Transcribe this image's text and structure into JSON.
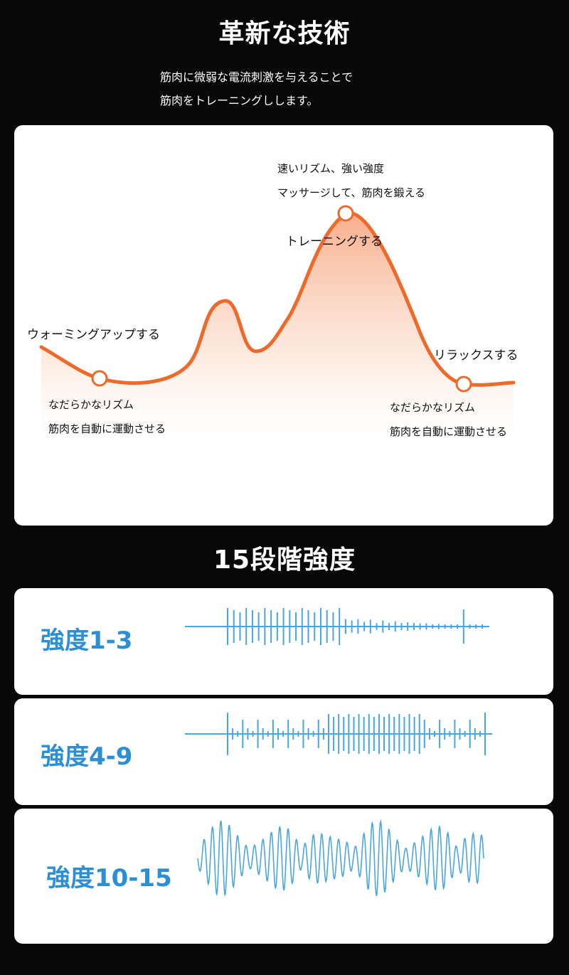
{
  "header": {
    "title": "革新な技術",
    "description_lines": [
      "筋肉に微弱な電流刺激を与えることで",
      "筋肉をトレーニングしします。"
    ]
  },
  "curve_panel": {
    "peak_label": "トレーニングする",
    "peak_desc_lines": [
      "速いリズム、強い強度",
      "マッサージして、筋肉を鍛える"
    ],
    "warmup_label": "ウォーミングアップする",
    "warmup_desc_lines": [
      "なだらかなリズム",
      "筋肉を自動に運動させる"
    ],
    "relax_label": "リラックスする",
    "relax_desc_lines": [
      "なだらかなリズム",
      "筋肉を自動に運動させる"
    ],
    "colors": {
      "curve": "#ee6a2a",
      "fill_top": "#f7b08c",
      "marker_fill": "#ffffff"
    }
  },
  "levels": {
    "title": "15段階強度",
    "items": [
      {
        "label": "強度1-3"
      },
      {
        "label": "強度4-9"
      },
      {
        "label": "強度10-15"
      }
    ],
    "colors": {
      "label": "#2b8fd6",
      "wave": "#4aa6e0"
    }
  }
}
